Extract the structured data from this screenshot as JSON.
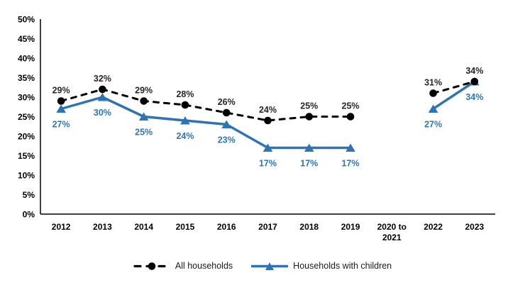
{
  "chart_data": {
    "type": "line",
    "categories": [
      "2012",
      "2013",
      "2014",
      "2015",
      "2016",
      "2017",
      "2018",
      "2019",
      "2020 to 2021",
      "2022",
      "2023"
    ],
    "series": [
      {
        "name": "All households",
        "color": "#000000",
        "label_color": "#262626",
        "line_style": "dashed",
        "marker": "circle",
        "label_position": "above",
        "values": [
          29,
          32,
          29,
          28,
          26,
          24,
          25,
          25,
          null,
          31,
          34
        ]
      },
      {
        "name": "Households with children",
        "color": "#2E74B5",
        "label_color": "#2E75B6",
        "line_style": "solid",
        "marker": "triangle",
        "label_position": "below",
        "values": [
          27,
          30,
          25,
          24,
          23,
          17,
          17,
          17,
          null,
          27,
          34
        ]
      }
    ],
    "ylim": [
      0,
      50
    ],
    "ytick_step": 5,
    "ytick_labels": [
      "0%",
      "5%",
      "10%",
      "15%",
      "20%",
      "25%",
      "30%",
      "35%",
      "40%",
      "45%",
      "50%"
    ],
    "data_label_suffix": "%",
    "grid": false,
    "legend_position": "bottom",
    "axis_color": "#000000"
  }
}
